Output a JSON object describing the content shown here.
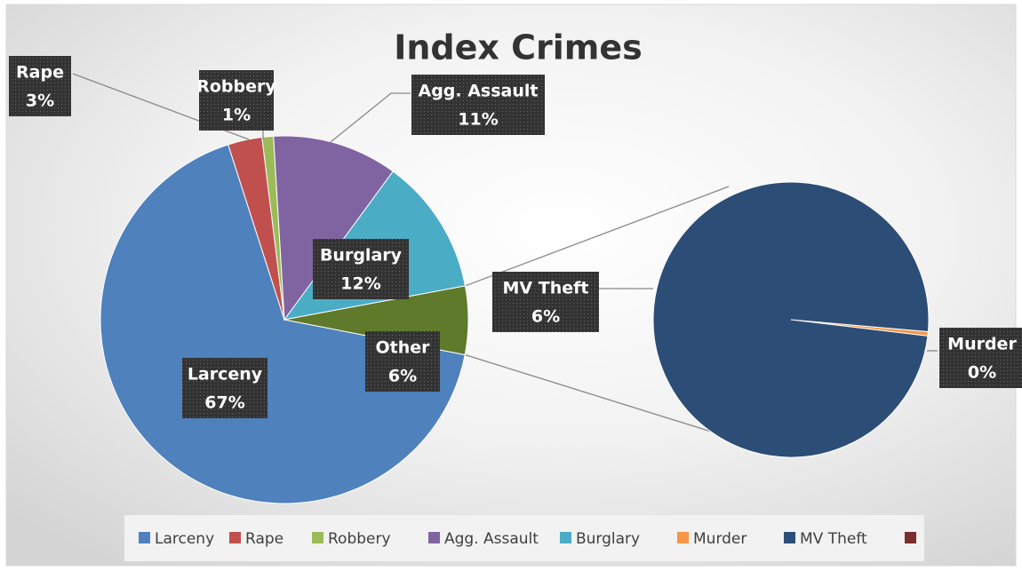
{
  "chart_data": {
    "type": "pie_of_pie",
    "title": "Index Crimes",
    "categories": [
      "Larceny",
      "Rape",
      "Robbery",
      "Agg. Assault",
      "Burglary",
      "Other"
    ],
    "values": [
      67,
      3,
      1,
      11,
      12,
      6
    ],
    "value_labels": [
      "67%",
      "3%",
      "1%",
      "11%",
      "12%",
      "6%"
    ],
    "colors": [
      "#4f81bd",
      "#c0504d",
      "#9bbb59",
      "#8064a2",
      "#4bacc6",
      "#5e7a2a"
    ],
    "secondary": {
      "categories": [
        "Murder",
        "MV Theft",
        null
      ],
      "values": [
        0.03,
        6,
        null
      ],
      "value_labels": [
        "0%",
        "6%",
        null
      ],
      "colors": [
        "#f79646",
        "#2c4d75",
        "#7b2c2c"
      ]
    },
    "legend": [
      {
        "name": "Larceny",
        "color": "#4f81bd"
      },
      {
        "name": "Rape",
        "color": "#c0504d"
      },
      {
        "name": "Robbery",
        "color": "#9bbb59"
      },
      {
        "name": "Agg. Assault",
        "color": "#8064a2"
      },
      {
        "name": "Burglary",
        "color": "#4bacc6"
      },
      {
        "name": "Murder",
        "color": "#f79646"
      },
      {
        "name": "MV Theft",
        "color": "#2c4d75"
      },
      {
        "name": null,
        "color": "#7b2c2c"
      }
    ]
  }
}
